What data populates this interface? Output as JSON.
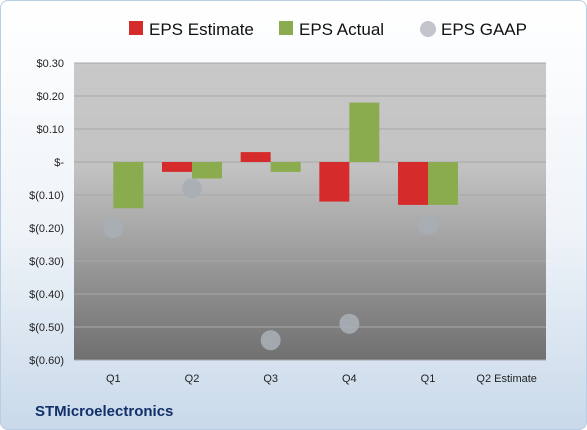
{
  "chart_data": {
    "type": "bar",
    "title": "",
    "xlabel": "",
    "ylabel": "",
    "categories": [
      "Q1",
      "Q2",
      "Q3",
      "Q4",
      "Q1",
      "Q2 Estimate"
    ],
    "ylim": [
      -0.6,
      0.3
    ],
    "yticks": [
      0.3,
      0.2,
      0.1,
      0.0,
      -0.1,
      -0.2,
      -0.3,
      -0.4,
      -0.5,
      -0.6
    ],
    "ytick_labels": [
      "$0.30",
      "$0.20",
      "$0.10",
      "$-",
      "$(0.10)",
      "$(0.20)",
      "$(0.30)",
      "$(0.40)",
      "$(0.50)",
      "$(0.60)"
    ],
    "grid": true,
    "legend_position": "top",
    "series": [
      {
        "name": "EPS Estimate",
        "kind": "bar",
        "color": "#d62b2b",
        "values": [
          null,
          -0.03,
          0.03,
          -0.12,
          -0.13,
          null
        ]
      },
      {
        "name": "EPS Actual",
        "kind": "bar",
        "color": "#8aab4e",
        "values": [
          -0.14,
          -0.05,
          -0.03,
          0.18,
          -0.13,
          null
        ]
      },
      {
        "name": "EPS GAAP",
        "kind": "scatter",
        "color": "#a9aeb6",
        "values": [
          -0.2,
          -0.08,
          -0.54,
          -0.49,
          -0.19,
          null
        ]
      }
    ]
  },
  "footer": {
    "company": "STMicroelectronics"
  }
}
